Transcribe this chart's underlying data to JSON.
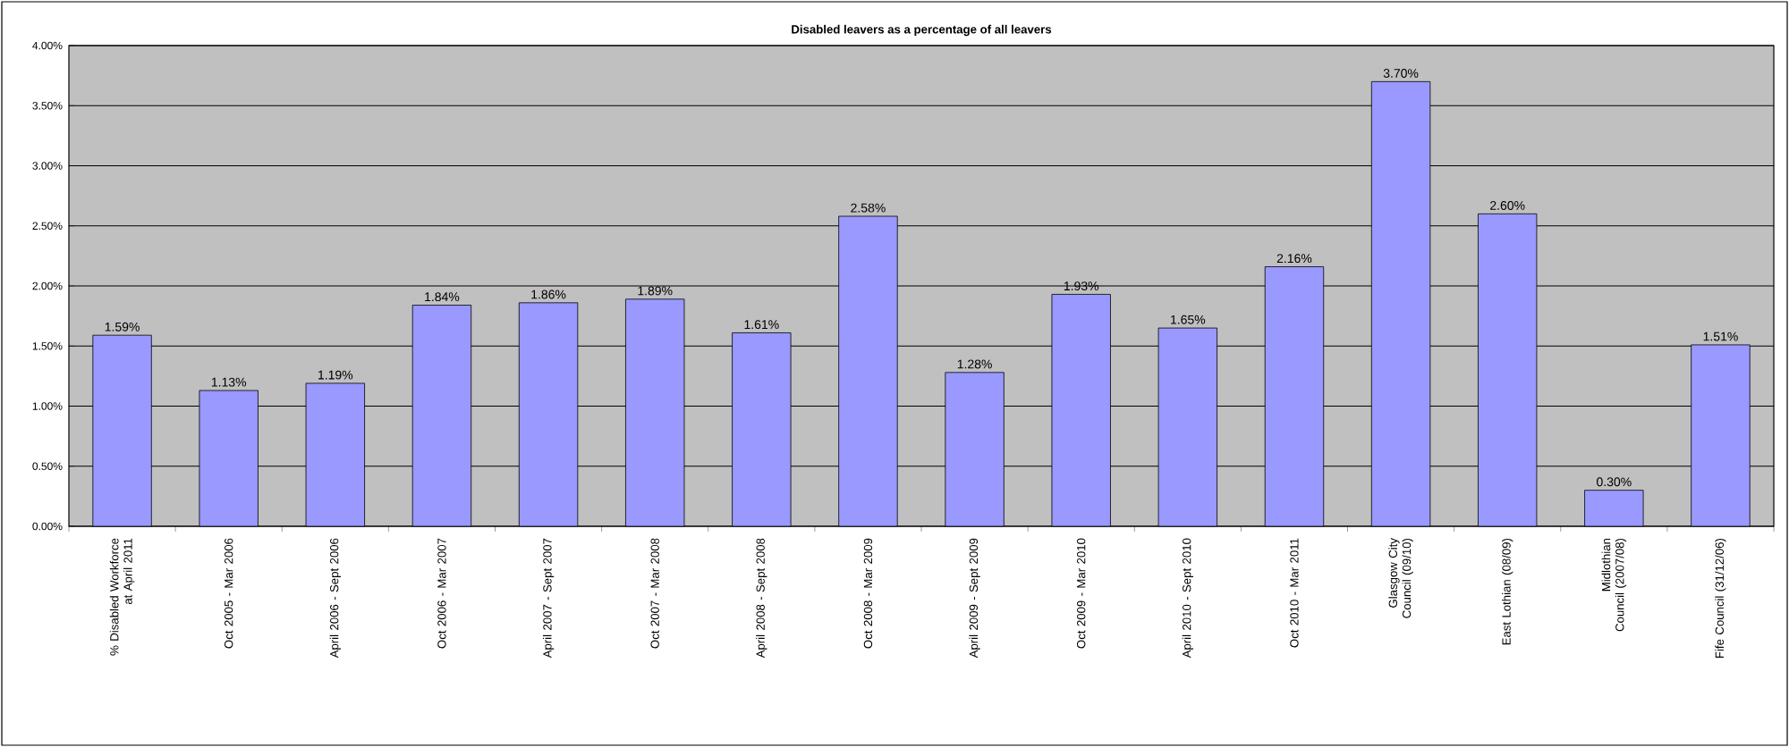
{
  "chart_data": {
    "type": "bar",
    "title": "Disabled leavers as a percentage of all leavers",
    "categories": [
      "% Disabled Workforce at April 2011",
      "Oct 2005 - Mar 2006",
      "April 2006 - Sept 2006",
      "Oct 2006 - Mar 2007",
      "April 2007 - Sept 2007",
      "Oct 2007 - Mar 2008",
      "April 2008 - Sept 2008",
      "Oct 2008 - Mar 2009",
      "April 2009 - Sept 2009",
      "Oct 2009 - Mar 2010",
      "April 2010 - Sept 2010",
      "Oct 2010 - Mar 2011",
      "Glasgow City Council (09/10)",
      "East Lothian (08/09)",
      "Midlothian Council (2007/08)",
      "Fife Council (31/12/06)"
    ],
    "values": [
      1.59,
      1.13,
      1.19,
      1.84,
      1.86,
      1.89,
      1.61,
      2.58,
      1.28,
      1.93,
      1.65,
      2.16,
      3.7,
      2.6,
      0.3,
      1.51
    ],
    "value_labels": [
      "1.59%",
      "1.13%",
      "1.19%",
      "1.84%",
      "1.86%",
      "1.89%",
      "1.61%",
      "2.58%",
      "1.28%",
      "1.93%",
      "1.65%",
      "2.16%",
      "3.70%",
      "2.60%",
      "0.30%",
      "1.51%"
    ],
    "color": "#9999ff",
    "ylim": [
      0,
      4
    ],
    "yticks": [
      {
        "value": 0,
        "label": "0.00%"
      },
      {
        "value": 0.5,
        "label": "0.50%"
      },
      {
        "value": 1,
        "label": "1.00%"
      },
      {
        "value": 1.5,
        "label": "1.50%"
      },
      {
        "value": 2,
        "label": "2.00%"
      },
      {
        "value": 2.5,
        "label": "2.50%"
      },
      {
        "value": 3,
        "label": "3.00%"
      },
      {
        "value": 3.5,
        "label": "3.50%"
      },
      {
        "value": 4,
        "label": "4.00%"
      }
    ],
    "grid": "y"
  }
}
